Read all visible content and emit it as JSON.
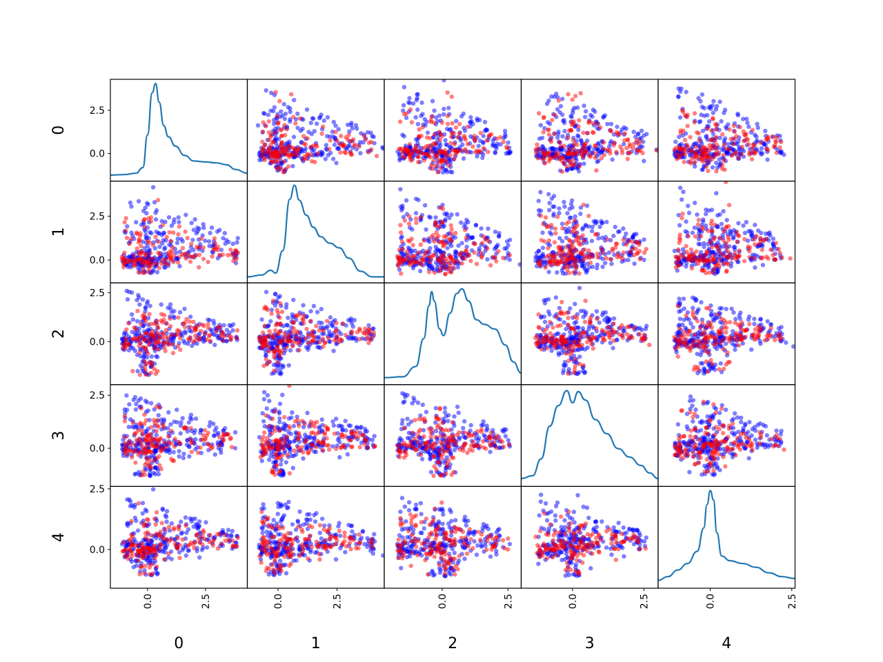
{
  "chart_data": {
    "type": "scatter",
    "variables": [
      "0",
      "1",
      "2",
      "3",
      "4"
    ],
    "diagonal": "kde",
    "axes": [
      {
        "name": "0",
        "range": [
          -1.6,
          4.3
        ],
        "ticks": [
          0.0,
          2.5
        ],
        "tick_labels": [
          "0.0",
          "2.5"
        ],
        "kde": [
          [
            -1.6,
            0.02
          ],
          [
            -1.0,
            0.025
          ],
          [
            -0.5,
            0.04
          ],
          [
            -0.2,
            0.1
          ],
          [
            0.0,
            0.45
          ],
          [
            0.2,
            0.9
          ],
          [
            0.35,
            1.0
          ],
          [
            0.5,
            0.8
          ],
          [
            0.7,
            0.55
          ],
          [
            0.9,
            0.43
          ],
          [
            1.2,
            0.33
          ],
          [
            1.6,
            0.23
          ],
          [
            2.0,
            0.17
          ],
          [
            2.5,
            0.16
          ],
          [
            3.0,
            0.15
          ],
          [
            3.4,
            0.13
          ],
          [
            3.8,
            0.08
          ],
          [
            4.3,
            0.04
          ]
        ]
      },
      {
        "name": "1",
        "range": [
          -1.3,
          4.5
        ],
        "ticks": [
          0.0,
          2.5
        ],
        "tick_labels": [
          "0.0",
          "2.5"
        ],
        "kde": [
          [
            -1.3,
            0.02
          ],
          [
            -0.7,
            0.04
          ],
          [
            -0.3,
            0.09
          ],
          [
            -0.1,
            0.06
          ],
          [
            0.2,
            0.3
          ],
          [
            0.5,
            0.85
          ],
          [
            0.7,
            1.0
          ],
          [
            0.9,
            0.84
          ],
          [
            1.2,
            0.68
          ],
          [
            1.5,
            0.55
          ],
          [
            1.8,
            0.45
          ],
          [
            2.2,
            0.38
          ],
          [
            2.6,
            0.33
          ],
          [
            3.0,
            0.22
          ],
          [
            3.5,
            0.08
          ],
          [
            4.0,
            0.02
          ],
          [
            4.5,
            0.02
          ]
        ]
      },
      {
        "name": "2",
        "range": [
          -2.2,
          3.0
        ],
        "ticks": [
          0.0,
          2.5
        ],
        "tick_labels": [
          "0.0",
          "2.5"
        ],
        "kde": [
          [
            -2.2,
            0.03
          ],
          [
            -1.5,
            0.04
          ],
          [
            -1.0,
            0.15
          ],
          [
            -0.7,
            0.45
          ],
          [
            -0.5,
            0.8
          ],
          [
            -0.4,
            0.95
          ],
          [
            -0.3,
            0.85
          ],
          [
            -0.1,
            0.55
          ],
          [
            0.05,
            0.48
          ],
          [
            0.3,
            0.72
          ],
          [
            0.55,
            0.93
          ],
          [
            0.75,
            0.98
          ],
          [
            1.0,
            0.85
          ],
          [
            1.3,
            0.65
          ],
          [
            1.6,
            0.6
          ],
          [
            2.0,
            0.55
          ],
          [
            2.4,
            0.38
          ],
          [
            2.7,
            0.2
          ],
          [
            3.0,
            0.08
          ]
        ]
      },
      {
        "name": "3",
        "range": [
          -1.8,
          3.0
        ],
        "ticks": [
          0.0,
          2.5
        ],
        "tick_labels": [
          "0.0",
          "2.5"
        ],
        "kde": [
          [
            -1.8,
            0.04
          ],
          [
            -1.4,
            0.07
          ],
          [
            -1.1,
            0.25
          ],
          [
            -0.8,
            0.6
          ],
          [
            -0.5,
            0.82
          ],
          [
            -0.2,
            0.98
          ],
          [
            0.0,
            0.85
          ],
          [
            0.2,
            0.97
          ],
          [
            0.45,
            0.88
          ],
          [
            0.8,
            0.67
          ],
          [
            1.2,
            0.52
          ],
          [
            1.6,
            0.36
          ],
          [
            2.0,
            0.27
          ],
          [
            2.4,
            0.18
          ],
          [
            2.7,
            0.1
          ],
          [
            3.0,
            0.04
          ]
        ]
      },
      {
        "name": "4",
        "range": [
          -1.6,
          2.6
        ],
        "ticks": [
          0.0,
          2.5
        ],
        "tick_labels": [
          "0.0",
          "2.5"
        ],
        "kde": [
          [
            -1.6,
            0.04
          ],
          [
            -1.3,
            0.08
          ],
          [
            -1.0,
            0.15
          ],
          [
            -0.7,
            0.22
          ],
          [
            -0.4,
            0.35
          ],
          [
            -0.2,
            0.6
          ],
          [
            -0.1,
            0.85
          ],
          [
            0.0,
            1.0
          ],
          [
            0.1,
            0.9
          ],
          [
            0.2,
            0.55
          ],
          [
            0.35,
            0.3
          ],
          [
            0.6,
            0.25
          ],
          [
            1.0,
            0.22
          ],
          [
            1.4,
            0.18
          ],
          [
            1.8,
            0.12
          ],
          [
            2.2,
            0.08
          ],
          [
            2.6,
            0.06
          ]
        ]
      }
    ],
    "y_tick_labels": [
      [
        "-0.0",
        "0.0",
        "2.5"
      ],
      [
        "0.0",
        "2.5"
      ],
      [
        "0.0",
        "2.5"
      ],
      [
        "0.0",
        "2.5"
      ],
      [
        "0.0",
        "2.5"
      ]
    ],
    "classes": [
      {
        "color": "#0000ff"
      },
      {
        "color": "#ff0000"
      }
    ],
    "kde_color": "#1f77b4",
    "xlabel": "",
    "ylabel": "",
    "title": ""
  }
}
